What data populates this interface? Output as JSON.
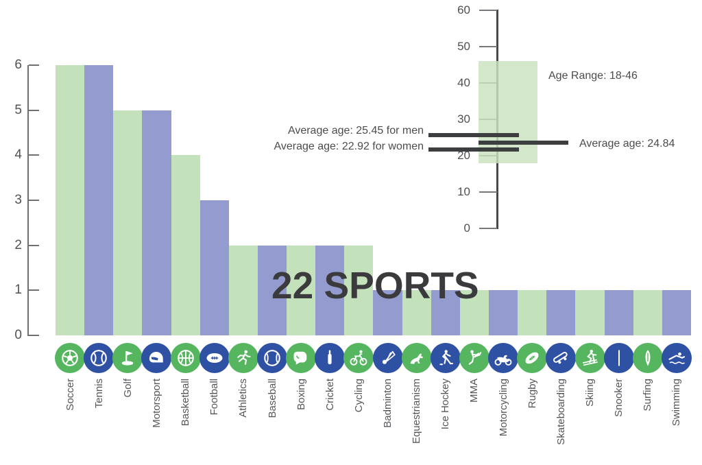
{
  "title": "22 SPORTS",
  "chart_data": {
    "type": "bar",
    "title": "22 SPORTS",
    "xlabel": "",
    "ylabel": "",
    "ylim": [
      0,
      6
    ],
    "y_ticks": [
      0,
      1,
      2,
      3,
      4,
      5,
      6
    ],
    "grid": false,
    "legend_position": "none",
    "categories": [
      "Soccer",
      "Tennis",
      "Golf",
      "Motorsport",
      "Basketball",
      "Football",
      "Athletics",
      "Baseball",
      "Boxing",
      "Cricket",
      "Cycling",
      "Badminton",
      "Equestrianism",
      "Ice Hockey",
      "MMA",
      "Motorcycling",
      "Rugby",
      "Skateboarding",
      "Skiing",
      "Snooker",
      "Surfing",
      "Swimming"
    ],
    "values": [
      6,
      6,
      5,
      5,
      4,
      3,
      2,
      2,
      2,
      2,
      2,
      1,
      1,
      1,
      1,
      1,
      1,
      1,
      1,
      1,
      1,
      1
    ],
    "icons": [
      "soccer-icon",
      "tennis-icon",
      "golf-icon",
      "motorsport-icon",
      "basketball-icon",
      "football-icon",
      "athletics-icon",
      "baseball-icon",
      "boxing-icon",
      "cricket-icon",
      "cycling-icon",
      "badminton-icon",
      "equestrianism-icon",
      "ice-hockey-icon",
      "mma-icon",
      "motorcycling-icon",
      "rugby-icon",
      "skateboarding-icon",
      "skiing-icon",
      "snooker-icon",
      "surfing-icon",
      "swimming-icon"
    ],
    "bar_color_even": "#c3e1bb",
    "bar_color_odd": "#949bcf",
    "icon_color_even": "#55b65f",
    "icon_color_odd": "#2f51a4"
  },
  "age_scale": {
    "min": 0,
    "max": 60,
    "ticks": [
      0,
      10,
      20,
      30,
      40,
      50,
      60
    ],
    "range_box": {
      "from": 18,
      "to": 46,
      "label": "Age Range: 18-46",
      "color": "#d5e9cc"
    },
    "markers": [
      {
        "value": 25.45,
        "label": "Average age: 25.45 for men",
        "side": "left"
      },
      {
        "value": 24.84,
        "label": "Average age: 24.84",
        "side": "right"
      },
      {
        "value": 22.92,
        "label": "Average age: 22.92 for women",
        "side": "left"
      }
    ]
  }
}
